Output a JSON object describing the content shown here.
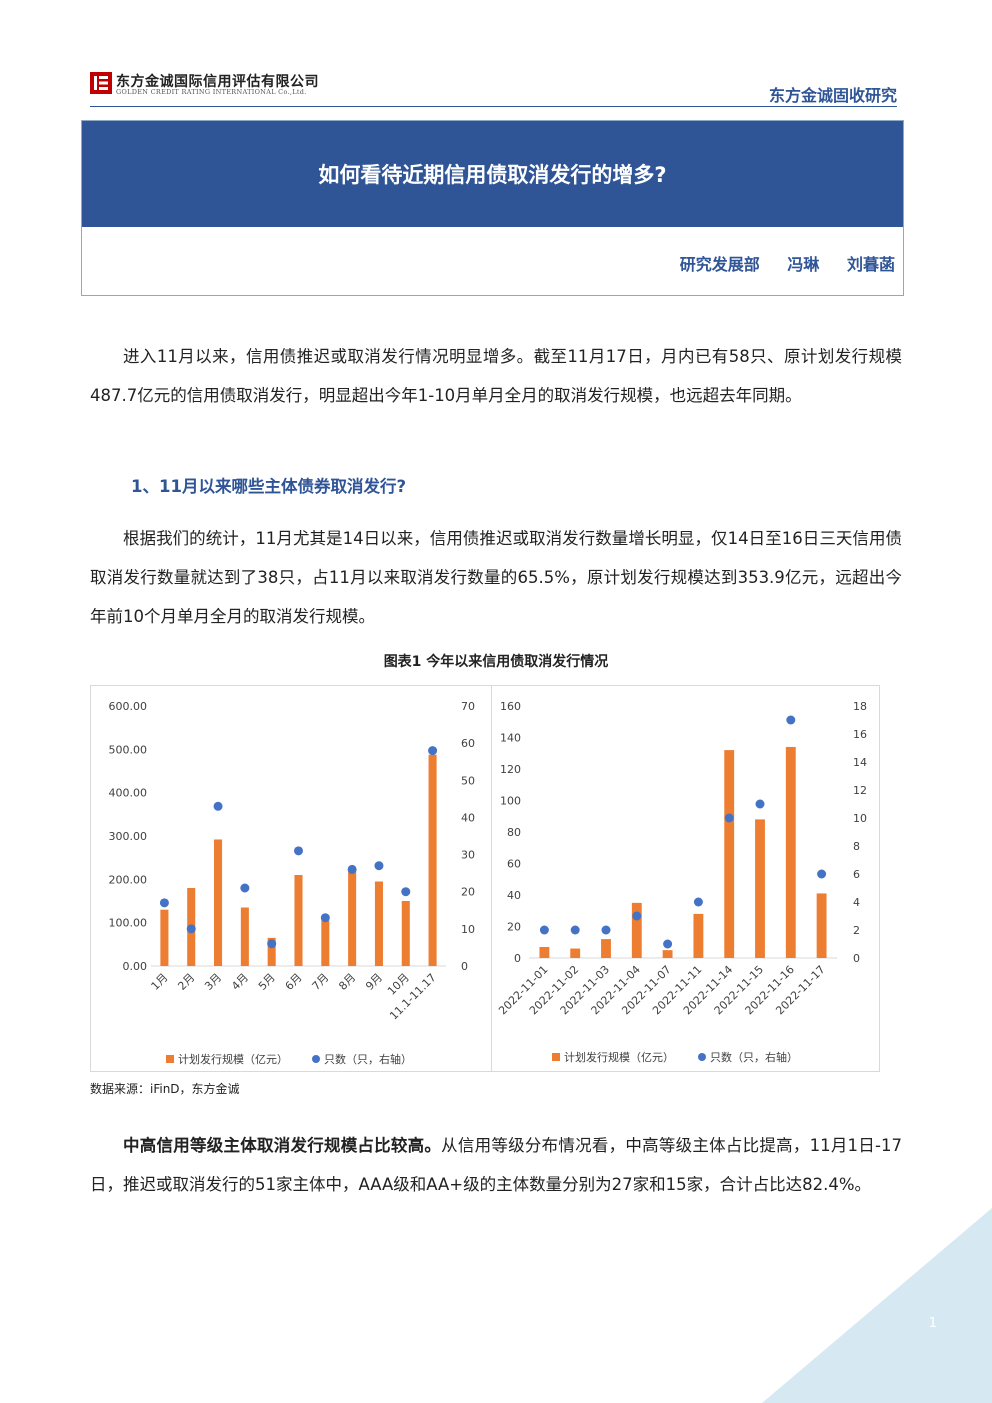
{
  "header": {
    "company_cn": "东方金诚国际信用评估有限公司",
    "company_en": "GOLDEN CREDIT RATING INTERNATIONAL Co.,Ltd.",
    "brand": "东方金诚固收研究"
  },
  "title": "如何看待近期信用债取消发行的增多?",
  "authors": {
    "department": "研究发展部",
    "names": [
      "冯琳",
      "刘暮菡"
    ]
  },
  "paragraphs": {
    "p1": "进入11月以来，信用债推迟或取消发行情况明显增多。截至11月17日，月内已有58只、原计划发行规模487.7亿元的信用债取消发行，明显超出今年1-10月单月全月的取消发行规模，也远超去年同期。",
    "heading1": "1、11月以来哪些主体债券取消发行?",
    "p2": "根据我们的统计，11月尤其是14日以来，信用债推迟或取消发行数量增长明显，仅14日至16日三天信用债取消发行数量就达到了38只，占11月以来取消发行数量的65.5%，原计划发行规模达到353.9亿元，远超出今年前10个月单月全月的取消发行规模。",
    "p3_bold": "中高信用等级主体取消发行规模占比较高。",
    "p3_rest": "从信用等级分布情况看，中高等级主体占比提高，11月1日-17日，推迟或取消发行的51家主体中，AAA级和AA+级的主体数量分别为27家和15家，合计占比达82.4%。"
  },
  "figure": {
    "caption": "图表1  今年以来信用债取消发行情况",
    "source": "数据来源：iFinD，东方金诚"
  },
  "chart_data": [
    {
      "type": "bar",
      "categories": [
        "1月",
        "2月",
        "3月",
        "4月",
        "5月",
        "6月",
        "7月",
        "8月",
        "9月",
        "10月",
        "11.1-11.17"
      ],
      "series": [
        {
          "name": "计划发行规模（亿元）",
          "type": "bar",
          "axis": "left",
          "color": "#ed7d31",
          "values": [
            130,
            180,
            292,
            135,
            65,
            210,
            105,
            220,
            195,
            150,
            487.7
          ]
        },
        {
          "name": "只数（只，右轴）",
          "type": "scatter",
          "axis": "right",
          "color": "#4472c4",
          "values": [
            17,
            10,
            43,
            21,
            6,
            31,
            13,
            26,
            27,
            20,
            58
          ]
        }
      ],
      "yticks_left": [
        "0.00",
        "100.00",
        "200.00",
        "300.00",
        "400.00",
        "500.00",
        "600.00"
      ],
      "ylim_left": [
        0,
        600
      ],
      "yticks_right": [
        "0",
        "10",
        "20",
        "30",
        "40",
        "50",
        "60",
        "70"
      ],
      "ylim_right": [
        0,
        70
      ],
      "legend_placement": "bottom",
      "grid": false
    },
    {
      "type": "bar",
      "categories": [
        "2022-11-01",
        "2022-11-02",
        "2022-11-03",
        "2022-11-04",
        "2022-11-07",
        "2022-11-11",
        "2022-11-14",
        "2022-11-15",
        "2022-11-16",
        "2022-11-17"
      ],
      "series": [
        {
          "name": "计划发行规模（亿元）",
          "type": "bar",
          "axis": "left",
          "color": "#ed7d31",
          "values": [
            7,
            6,
            12,
            35,
            5,
            28,
            132,
            88,
            134,
            41
          ]
        },
        {
          "name": "只数（只，右轴）",
          "type": "scatter",
          "axis": "right",
          "color": "#4472c4",
          "values": [
            2,
            2,
            2,
            3,
            1,
            4,
            10,
            11,
            17,
            6
          ]
        }
      ],
      "yticks_left": [
        "0",
        "20",
        "40",
        "60",
        "80",
        "100",
        "120",
        "140",
        "160"
      ],
      "ylim_left": [
        0,
        160
      ],
      "yticks_right": [
        "0",
        "2",
        "4",
        "6",
        "8",
        "10",
        "12",
        "14",
        "16",
        "18"
      ],
      "ylim_right": [
        0,
        18
      ],
      "legend_placement": "bottom",
      "grid": false
    }
  ],
  "page_number": "1",
  "colors": {
    "brand_blue": "#2f5597",
    "bar_orange": "#ed7d31",
    "dot_blue": "#4472c4",
    "corner_tint": "#d6e9f2"
  }
}
